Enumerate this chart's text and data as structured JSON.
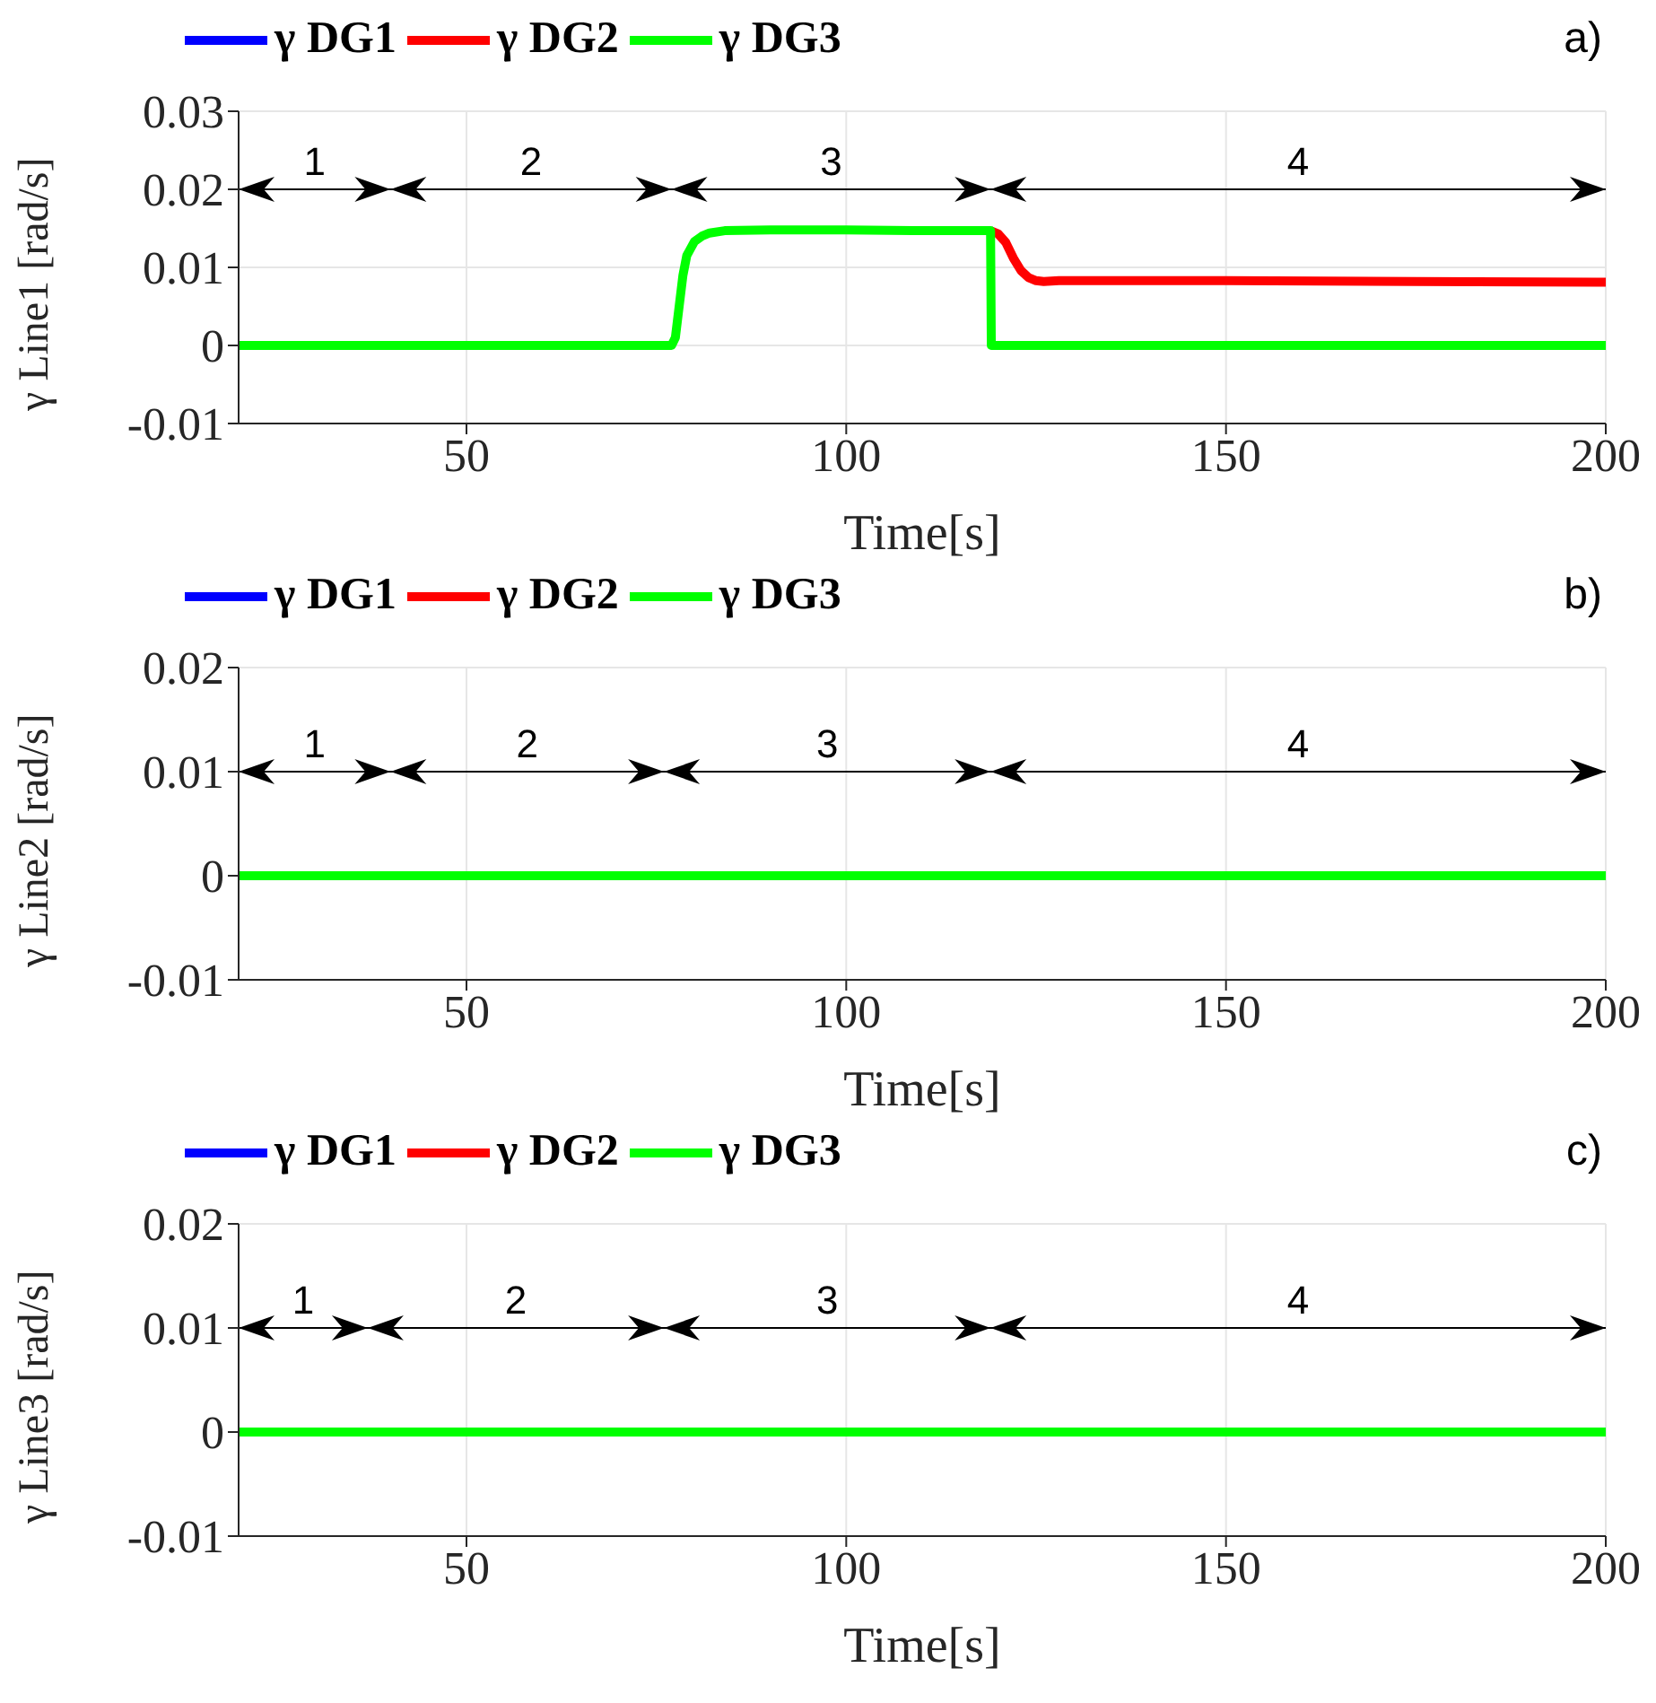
{
  "chart_data": [
    {
      "type": "line",
      "title": "a)",
      "xlabel": "Time[s]",
      "ylabel": "γ Line1 [rad/s]",
      "xlim": [
        20,
        200
      ],
      "xticks": [
        50,
        100,
        150,
        200
      ],
      "ylim": [
        -0.01,
        0.03
      ],
      "yticks": [
        -0.01,
        0,
        0.01,
        0.02,
        0.03
      ],
      "grid": true,
      "legend": "top left",
      "marker": "none",
      "ref_lines": [
        {
          "axis": "y",
          "value": 0.02,
          "color": "#000000"
        }
      ],
      "annotations": [
        {
          "text": "1",
          "x": 30,
          "y": 0.02
        },
        {
          "text": "2",
          "x": 58.5,
          "y": 0.02
        },
        {
          "text": "3",
          "x": 98,
          "y": 0.02
        },
        {
          "text": "4",
          "x": 159.5,
          "y": 0.02
        }
      ],
      "series": [
        {
          "name": "γ DG1",
          "color": "#0000ff"
        },
        {
          "name": "γ DG2",
          "color": "#ff0000",
          "x": [
            119,
            120,
            121,
            122,
            123,
            124,
            125,
            126,
            128,
            135,
            150,
            175,
            200
          ],
          "values": [
            0.0147,
            0.0143,
            0.0132,
            0.0112,
            0.0096,
            0.0087,
            0.0083,
            0.0082,
            0.0083,
            0.0083,
            0.0083,
            0.0082,
            0.0081
          ]
        },
        {
          "name": "γ DG3",
          "color": "#00ff00",
          "x": [
            20,
            50,
            77,
            77.5,
            78,
            78.5,
            79,
            80,
            81,
            82,
            84,
            90,
            100,
            110,
            119,
            119.1,
            120,
            150,
            200
          ],
          "values": [
            0,
            0,
            0,
            0.001,
            0.005,
            0.009,
            0.0115,
            0.0133,
            0.014,
            0.0144,
            0.0147,
            0.0148,
            0.0148,
            0.0147,
            0.0147,
            0,
            0,
            0,
            0
          ]
        }
      ]
    },
    {
      "type": "line",
      "title": "b)",
      "xlabel": "Time[s]",
      "ylabel": "γ Line2 [rad/s]",
      "xlim": [
        20,
        200
      ],
      "xticks": [
        50,
        100,
        150,
        200
      ],
      "ylim": [
        -0.01,
        0.02
      ],
      "yticks": [
        -0.01,
        0,
        0.01,
        0.02
      ],
      "grid": true,
      "legend": "top left",
      "marker": "none",
      "ref_lines": [
        {
          "axis": "y",
          "value": 0.01,
          "color": "#000000"
        }
      ],
      "annotations": [
        {
          "text": "1",
          "x": 30,
          "y": 0.01
        },
        {
          "text": "2",
          "x": 58,
          "y": 0.01
        },
        {
          "text": "3",
          "x": 97.5,
          "y": 0.01
        },
        {
          "text": "4",
          "x": 159.5,
          "y": 0.01
        }
      ],
      "series": [
        {
          "name": "γ DG1",
          "color": "#0000ff"
        },
        {
          "name": "γ DG2",
          "color": "#ff0000"
        },
        {
          "name": "γ DG3",
          "color": "#00ff00",
          "x": [
            20,
            200
          ],
          "values": [
            0,
            0
          ]
        }
      ]
    },
    {
      "type": "line",
      "title": "c)",
      "xlabel": "Time[s]",
      "ylabel": "γ Line3 [rad/s]",
      "xlim": [
        20,
        200
      ],
      "xticks": [
        50,
        100,
        150,
        200
      ],
      "ylim": [
        -0.01,
        0.02
      ],
      "yticks": [
        -0.01,
        0,
        0.01,
        0.02
      ],
      "grid": true,
      "legend": "top left",
      "marker": "none",
      "ref_lines": [
        {
          "axis": "y",
          "value": 0.01,
          "color": "#000000"
        }
      ],
      "annotations": [
        {
          "text": "1",
          "x": 28.5,
          "y": 0.01
        },
        {
          "text": "2",
          "x": 56.5,
          "y": 0.01
        },
        {
          "text": "3",
          "x": 97.5,
          "y": 0.01
        },
        {
          "text": "4",
          "x": 159.5,
          "y": 0.01
        }
      ],
      "series": [
        {
          "name": "γ DG1",
          "color": "#0000ff"
        },
        {
          "name": "γ DG2",
          "color": "#ff0000"
        },
        {
          "name": "γ DG3",
          "color": "#00ff00",
          "x": [
            20,
            200
          ],
          "values": [
            0,
            0
          ]
        }
      ]
    }
  ]
}
